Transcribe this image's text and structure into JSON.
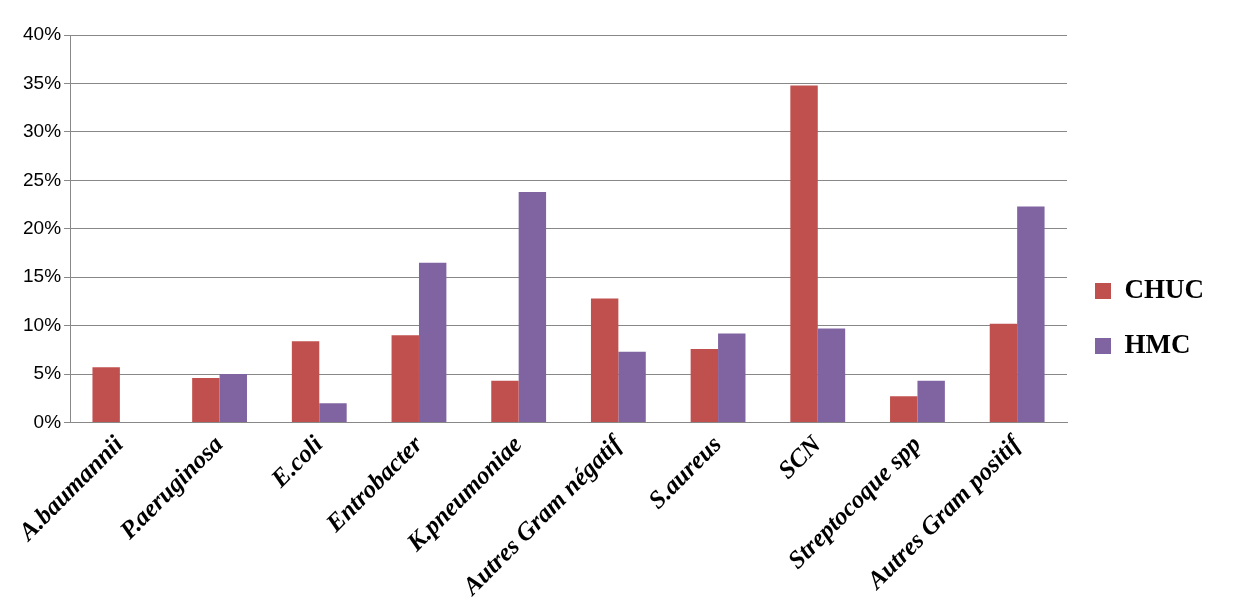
{
  "chart_data": {
    "type": "bar",
    "categories": [
      "A.baumannii",
      "P.aeruginosa",
      "E.coli",
      "Entrobacter",
      "K.pneumoniae",
      "Autres Gram négatif",
      "S.aureus",
      "SCN",
      "Streptocoque spp",
      "Autres Gram positif"
    ],
    "series": [
      {
        "name": "CHUC",
        "color": "#c0504d",
        "values": [
          5.7,
          4.6,
          8.4,
          9.0,
          4.3,
          12.8,
          7.6,
          34.8,
          2.7,
          10.2
        ]
      },
      {
        "name": "HMC",
        "color": "#8064a2",
        "values": [
          0,
          5.0,
          2.0,
          16.5,
          23.8,
          7.3,
          9.2,
          9.7,
          4.3,
          22.3
        ]
      }
    ],
    "ylim": [
      0,
      40
    ],
    "yticks": [
      {
        "value": 0,
        "label": "0%"
      },
      {
        "value": 5,
        "label": "5%"
      },
      {
        "value": 10,
        "label": "10%"
      },
      {
        "value": 15,
        "label": "15%"
      },
      {
        "value": 20,
        "label": "20%"
      },
      {
        "value": 25,
        "label": "25%"
      },
      {
        "value": 30,
        "label": "30%"
      },
      {
        "value": 35,
        "label": "35%"
      },
      {
        "value": 40,
        "label": "40%"
      }
    ],
    "grid": "y",
    "legend": "right"
  }
}
